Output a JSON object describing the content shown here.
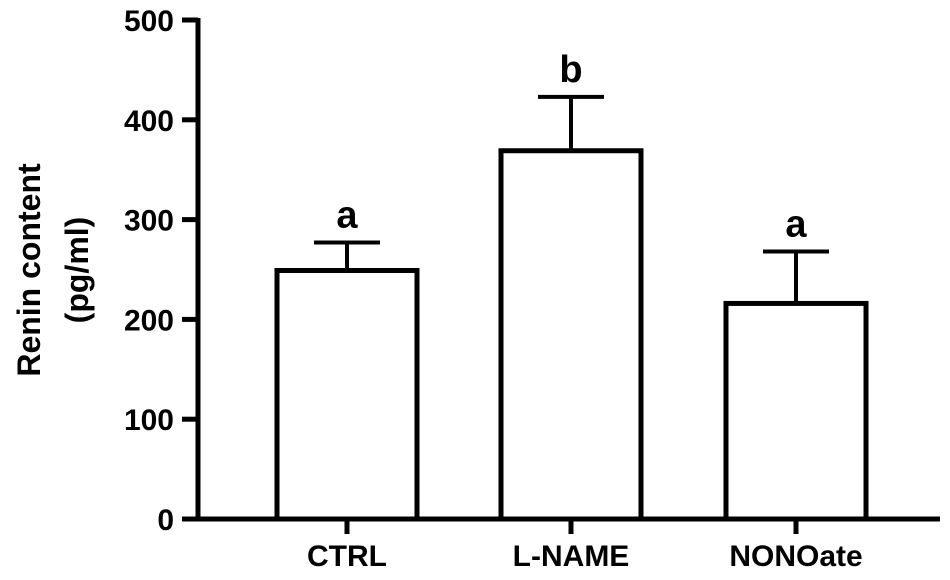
{
  "chart_data": {
    "type": "bar",
    "categories": [
      "CTRL",
      "L-NAME",
      "NONOate"
    ],
    "values": [
      249,
      369,
      216
    ],
    "error_upper": [
      277,
      423,
      268
    ],
    "significance": [
      "a",
      "b",
      "a"
    ],
    "ylabel_line1": "Renin content",
    "ylabel_line2": "(pg/ml)",
    "ylim": [
      0,
      500
    ],
    "yticks": [
      "0",
      "100",
      "200",
      "300",
      "400",
      "500"
    ],
    "grid": false,
    "bar_fill": "#ffffff",
    "bar_stroke": "#000000"
  }
}
